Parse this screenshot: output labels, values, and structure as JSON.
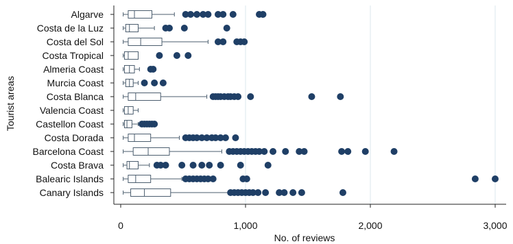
{
  "chart_data": {
    "type": "boxplot",
    "orientation": "horizontal",
    "xlabel": "No. of reviews",
    "ylabel": "Tourist areas",
    "xlim": [
      0,
      3050
    ],
    "xticks": [
      0,
      1000,
      2000,
      3000
    ],
    "xtick_labels": [
      "0",
      "1,000",
      "2,000",
      "3,000"
    ],
    "grid": true,
    "colors": {
      "box": "#4b5d6e",
      "outlier": "#1f3f66",
      "grid": "#dbe7ee",
      "axis": "#222222"
    },
    "categories": [
      {
        "name": "Algarve",
        "whisker_low": 20,
        "q1": 60,
        "median": 110,
        "q3": 250,
        "whisker_high": 430,
        "outliers": [
          520,
          560,
          610,
          660,
          700,
          780,
          820,
          900,
          1110,
          1140
        ]
      },
      {
        "name": "Costa de la Luz",
        "whisker_low": 20,
        "q1": 40,
        "median": 70,
        "q3": 140,
        "whisker_high": 270,
        "outliers": [
          360,
          390,
          510,
          850
        ]
      },
      {
        "name": "Costa del Sol",
        "whisker_low": 20,
        "q1": 60,
        "median": 160,
        "q3": 330,
        "whisker_high": 700,
        "outliers": [
          780,
          820,
          930,
          960,
          990
        ]
      },
      {
        "name": "Costa Tropical",
        "whisker_low": 20,
        "q1": 30,
        "median": 60,
        "q3": 140,
        "whisker_high": 140,
        "outliers": [
          310,
          450,
          540
        ]
      },
      {
        "name": "Almeria Coast",
        "whisker_low": 20,
        "q1": 30,
        "median": 70,
        "q3": 110,
        "whisker_high": 150,
        "outliers": [
          240,
          260
        ]
      },
      {
        "name": "Murcia Coast",
        "whisker_low": 20,
        "q1": 40,
        "median": 70,
        "q3": 100,
        "whisker_high": 140,
        "outliers": [
          190,
          270,
          340
        ]
      },
      {
        "name": "Costa Blanca",
        "whisker_low": 20,
        "q1": 60,
        "median": 120,
        "q3": 320,
        "whisker_high": 690,
        "outliers": [
          740,
          760,
          780,
          800,
          830,
          860,
          880,
          910,
          940,
          1040,
          1530,
          1760
        ]
      },
      {
        "name": "Valencia Coast",
        "whisker_low": 20,
        "q1": 30,
        "median": 60,
        "q3": 100,
        "whisker_high": 140,
        "outliers": []
      },
      {
        "name": "Castellon Coast",
        "whisker_low": 20,
        "q1": 30,
        "median": 50,
        "q3": 90,
        "whisker_high": 140,
        "outliers": [
          170,
          190,
          210,
          230,
          250,
          270
        ]
      },
      {
        "name": "Costa Dorada",
        "whisker_low": 20,
        "q1": 60,
        "median": 110,
        "q3": 240,
        "whisker_high": 470,
        "outliers": [
          520,
          550,
          580,
          610,
          650,
          690,
          730,
          760,
          800,
          840,
          920
        ]
      },
      {
        "name": "Barcelona Coast",
        "whisker_low": 20,
        "q1": 100,
        "median": 220,
        "q3": 390,
        "whisker_high": 810,
        "outliers": [
          870,
          900,
          930,
          960,
          990,
          1020,
          1050,
          1080,
          1110,
          1150,
          1220,
          1320,
          1430,
          1470,
          1770,
          1820,
          1960,
          2190
        ]
      },
      {
        "name": "Costa Brava",
        "whisker_low": 20,
        "q1": 50,
        "median": 70,
        "q3": 140,
        "whisker_high": 230,
        "outliers": [
          290,
          320,
          360,
          490,
          580,
          650,
          710,
          800,
          960,
          1180
        ]
      },
      {
        "name": "Balearic Islands",
        "whisker_low": 20,
        "q1": 60,
        "median": 120,
        "q3": 240,
        "whisker_high": 490,
        "outliers": [
          520,
          550,
          580,
          610,
          640,
          670,
          700,
          740,
          980,
          1010,
          2840,
          3000
        ]
      },
      {
        "name": "Canary Islands",
        "whisker_low": 20,
        "q1": 80,
        "median": 190,
        "q3": 400,
        "whisker_high": 860,
        "outliers": [
          880,
          910,
          940,
          970,
          1000,
          1030,
          1060,
          1100,
          1160,
          1270,
          1310,
          1380,
          1450,
          1780
        ]
      }
    ]
  }
}
